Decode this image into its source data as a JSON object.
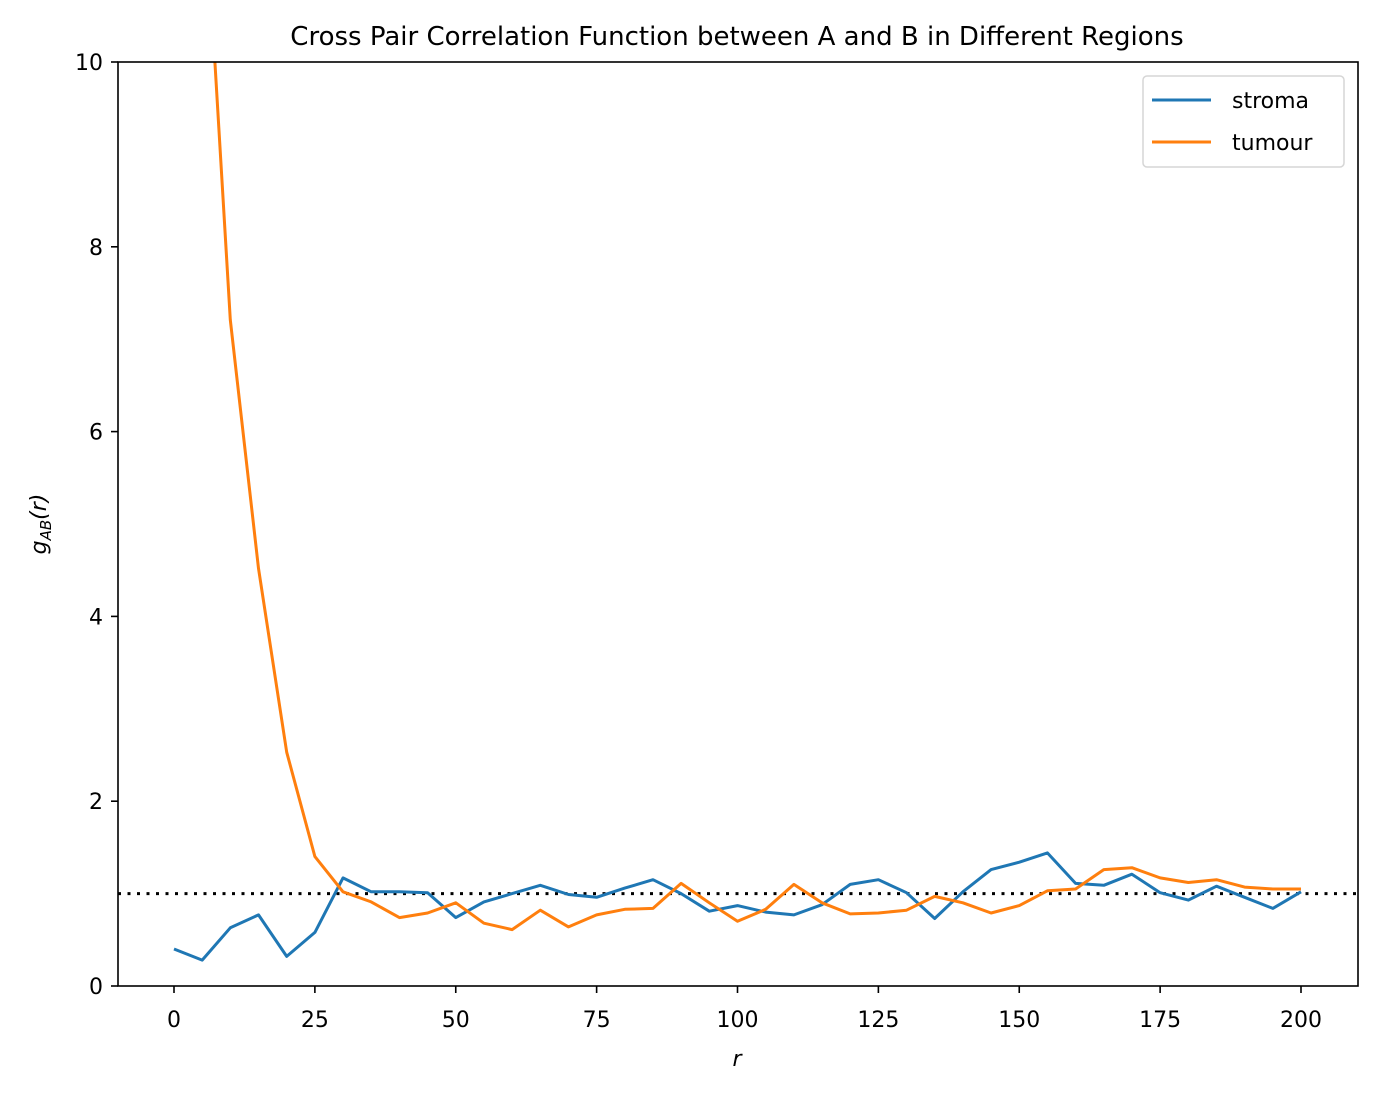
{
  "chart_data": {
    "type": "line",
    "title": "Cross Pair Correlation Function between A and B in Different Regions",
    "xlabel": "r",
    "ylabel": "g_AB(r)",
    "ylabel_main": "g",
    "ylabel_sub": "AB",
    "ylabel_tail": "(r)",
    "xlim": [
      -10,
      210
    ],
    "ylim": [
      0,
      10
    ],
    "xticks": [
      0,
      25,
      50,
      75,
      100,
      125,
      150,
      175,
      200
    ],
    "yticks": [
      0,
      2,
      4,
      6,
      8,
      10
    ],
    "grid": false,
    "legend_position": "upper right",
    "reference_line": {
      "y": 1,
      "style": "dotted",
      "color": "#000000"
    },
    "x": [
      0,
      5,
      10,
      15,
      20,
      25,
      30,
      35,
      40,
      45,
      50,
      55,
      60,
      65,
      70,
      75,
      80,
      85,
      90,
      95,
      100,
      105,
      110,
      115,
      120,
      125,
      130,
      135,
      140,
      145,
      150,
      155,
      160,
      165,
      170,
      175,
      180,
      185,
      190,
      195,
      200
    ],
    "series": [
      {
        "name": "stroma",
        "color": "#1f77b4",
        "values": [
          0.4,
          0.28,
          0.63,
          0.77,
          0.32,
          0.58,
          1.17,
          1.02,
          1.02,
          1.01,
          0.74,
          0.91,
          1.0,
          1.09,
          0.99,
          0.96,
          1.06,
          1.15,
          1.0,
          0.81,
          0.87,
          0.8,
          0.77,
          0.88,
          1.1,
          1.15,
          1.01,
          0.73,
          1.02,
          1.26,
          1.34,
          1.44,
          1.11,
          1.09,
          1.21,
          1.01,
          0.93,
          1.08,
          0.96,
          0.84,
          1.02
        ]
      },
      {
        "name": "tumour",
        "color": "#ff7f0e",
        "values": [
          null,
          12.3,
          7.21,
          4.52,
          2.53,
          1.4,
          1.02,
          0.91,
          0.74,
          0.79,
          0.9,
          0.68,
          0.61,
          0.82,
          0.64,
          0.77,
          0.83,
          0.84,
          1.11,
          0.9,
          0.7,
          0.83,
          1.1,
          0.9,
          0.78,
          0.79,
          0.82,
          0.97,
          0.9,
          0.79,
          0.87,
          1.03,
          1.05,
          1.26,
          1.28,
          1.17,
          1.12,
          1.15,
          1.07,
          1.05,
          1.05
        ]
      }
    ]
  }
}
